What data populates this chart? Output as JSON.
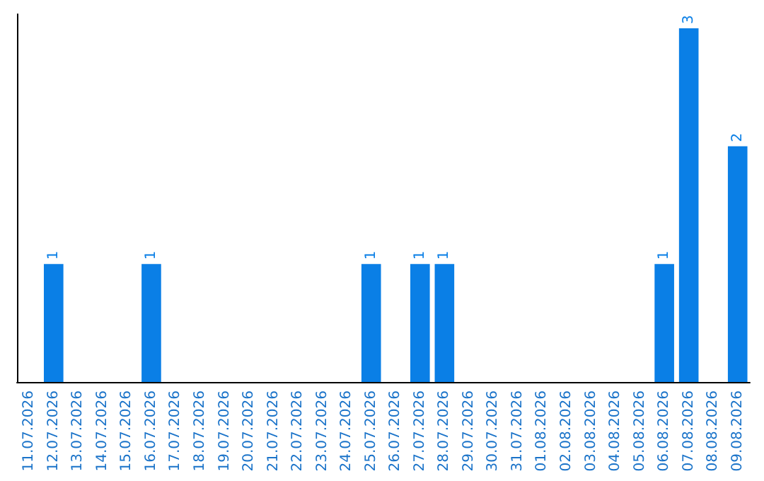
{
  "chart_data": {
    "type": "bar",
    "categories": [
      "11.07.2026",
      "12.07.2026",
      "13.07.2026",
      "14.07.2026",
      "15.07.2026",
      "16.07.2026",
      "17.07.2026",
      "18.07.2026",
      "19.07.2026",
      "20.07.2026",
      "21.07.2026",
      "22.07.2026",
      "23.07.2026",
      "24.07.2026",
      "25.07.2026",
      "26.07.2026",
      "27.07.2026",
      "28.07.2026",
      "29.07.2026",
      "30.07.2026",
      "31.07.2026",
      "01.08.2026",
      "02.08.2026",
      "03.08.2026",
      "04.08.2026",
      "05.08.2026",
      "06.08.2026",
      "07.08.2026",
      "08.08.2026",
      "09.08.2026"
    ],
    "values": [
      null,
      1,
      null,
      null,
      null,
      1,
      null,
      null,
      null,
      null,
      null,
      null,
      null,
      null,
      1,
      null,
      1,
      1,
      null,
      null,
      null,
      null,
      null,
      null,
      null,
      null,
      1,
      3,
      null,
      2
    ],
    "color": "#0a7fe6",
    "data_labels": true,
    "tick_labels": "x"
  }
}
